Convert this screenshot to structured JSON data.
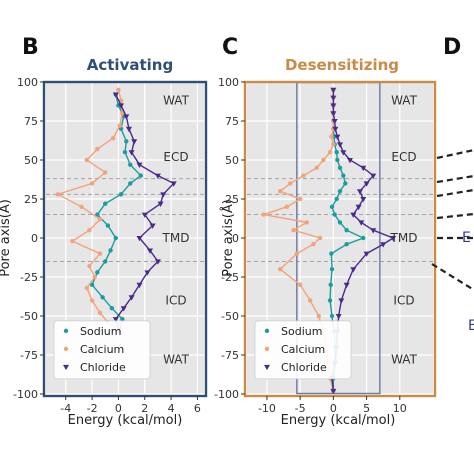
{
  "panel_labels": [
    "B",
    "C",
    "D"
  ],
  "colors": {
    "sodium": "#1a9da0",
    "calcium": "#f4a27a",
    "chloride": "#4b2a8c",
    "activating_frame": "#2f4f75",
    "desensitizing_frame": "#c98b45",
    "plot_bg": "#e6e6e6"
  },
  "regions": [
    "WAT",
    "ECD",
    "TMD",
    "ICD",
    "WAT"
  ],
  "legend": [
    "Sodium",
    "Calcium",
    "Chloride"
  ],
  "right_fragment_labels": [
    "E",
    "E"
  ],
  "chart_data": [
    {
      "type": "line",
      "title": "Activating",
      "xlabel": "Energy (kcal/mol)",
      "ylabel": "",
      "xlim": [
        -5.5,
        6.5
      ],
      "ylim": [
        -100,
        100
      ],
      "xticks": [
        -4,
        -2,
        0,
        2,
        4,
        6
      ],
      "yticks": [
        -100,
        -75,
        -50,
        -25,
        0,
        25,
        50,
        75,
        100
      ],
      "dashed_lines_y": [
        38,
        28,
        15,
        -15
      ],
      "region_label_y": [
        88,
        52,
        0,
        -40,
        -78
      ],
      "legend_placement": "lower-left",
      "grid": true,
      "series": [
        {
          "name": "Sodium",
          "color": "sodium",
          "marker": "circle",
          "y": [
            -60,
            -52,
            -45,
            -38,
            -30,
            -22,
            -15,
            -8,
            0,
            8,
            15,
            22,
            28,
            35,
            40,
            47,
            55,
            62,
            70,
            78,
            85,
            92
          ],
          "x": [
            0.1,
            0.3,
            -0.5,
            -1.2,
            -2.0,
            -1.6,
            -1.0,
            -0.6,
            -0.2,
            -0.8,
            -1.6,
            -1.0,
            0.2,
            0.9,
            1.7,
            0.9,
            0.5,
            0.6,
            0.2,
            0.4,
            0.0,
            -0.2
          ]
        },
        {
          "name": "Calcium",
          "color": "calcium",
          "marker": "circle",
          "y": [
            -60,
            -54,
            -48,
            -40,
            -32,
            -25,
            -18,
            -10,
            -2,
            5,
            12,
            20,
            28,
            35,
            42,
            50,
            57,
            64,
            72,
            80,
            88,
            95
          ],
          "x": [
            0.2,
            -0.8,
            -1.4,
            -2.0,
            -2.4,
            -1.8,
            -2.2,
            -1.4,
            -3.5,
            -2.2,
            -1.4,
            -2.8,
            -4.6,
            -2.0,
            -1.0,
            -2.4,
            -1.6,
            -0.4,
            0.1,
            0.3,
            0.2,
            0.0
          ]
        },
        {
          "name": "Chloride",
          "color": "chloride",
          "marker": "triangle",
          "y": [
            -60,
            -52,
            -45,
            -38,
            -30,
            -22,
            -15,
            -8,
            0,
            8,
            15,
            22,
            28,
            35,
            40,
            47,
            55,
            62,
            70,
            78,
            85,
            92
          ],
          "x": [
            0.1,
            -0.2,
            0.4,
            1.0,
            1.6,
            2.2,
            3.0,
            2.4,
            1.6,
            2.6,
            2.0,
            3.2,
            3.4,
            4.2,
            3.0,
            1.6,
            1.0,
            1.2,
            0.8,
            0.6,
            0.2,
            -0.2
          ]
        }
      ]
    },
    {
      "type": "line",
      "title": "Desensitizing",
      "xlabel": "Energy (kcal/mol)",
      "ylabel": "Pore axis(Å)",
      "xlim": [
        -13,
        15
      ],
      "ylim": [
        -100,
        100
      ],
      "xticks": [
        -10,
        -5,
        0,
        5,
        10
      ],
      "yticks": [
        -100,
        -75,
        -50,
        -25,
        0,
        25,
        50,
        75,
        100
      ],
      "dashed_lines_y": [
        38,
        28,
        15,
        -15
      ],
      "region_label_y": [
        88,
        52,
        0,
        -40,
        -78
      ],
      "highlight_box_x": [
        -5.5,
        7.0
      ],
      "legend_placement": "lower-left",
      "grid": true,
      "series": [
        {
          "name": "Sodium",
          "color": "sodium",
          "marker": "circle",
          "y": [
            -98,
            -90,
            -80,
            -70,
            -60,
            -50,
            -40,
            -30,
            -20,
            -10,
            -4,
            0,
            5,
            10,
            15,
            20,
            25,
            30,
            35,
            40,
            45,
            50,
            55,
            60,
            65,
            70,
            75,
            80,
            85,
            90,
            95
          ],
          "x": [
            0,
            0,
            0.2,
            0.3,
            0.1,
            -0.2,
            -0.5,
            -0.4,
            -0.2,
            -0.3,
            2.0,
            4.5,
            2.0,
            1.0,
            0.2,
            -0.2,
            0.5,
            1.0,
            1.8,
            1.5,
            1.0,
            0.6,
            0.5,
            0.2,
            0.1,
            0,
            0,
            0,
            0,
            0,
            0
          ]
        },
        {
          "name": "Calcium",
          "color": "calcium",
          "marker": "circle",
          "y": [
            -98,
            -90,
            -80,
            -70,
            -60,
            -50,
            -40,
            -30,
            -20,
            -10,
            -4,
            0,
            5,
            10,
            15,
            20,
            25,
            30,
            35,
            40,
            45,
            50,
            55,
            60,
            65,
            70,
            75,
            80,
            85,
            90,
            95
          ],
          "x": [
            0,
            -0.5,
            -0.8,
            -1.0,
            -1.5,
            -2.2,
            -3.5,
            -5.0,
            -8.0,
            -5.5,
            -3.0,
            -2.0,
            -6.0,
            -4.0,
            -10.5,
            -7.0,
            -5.0,
            -8.0,
            -6.5,
            -4.5,
            -2.5,
            -1.5,
            -0.5,
            0,
            -0.3,
            0,
            0,
            0,
            0,
            0,
            0
          ]
        },
        {
          "name": "Chloride",
          "color": "chloride",
          "marker": "triangle",
          "y": [
            -98,
            -90,
            -80,
            -70,
            -60,
            -50,
            -40,
            -30,
            -20,
            -10,
            -4,
            0,
            5,
            10,
            15,
            20,
            25,
            30,
            35,
            40,
            45,
            50,
            55,
            60,
            65,
            70,
            75,
            80,
            85,
            90,
            95
          ],
          "x": [
            0,
            -0.2,
            0.3,
            0.5,
            0.6,
            0.8,
            1.2,
            2.0,
            3.0,
            5.0,
            7.5,
            9.0,
            6.0,
            4.2,
            3.0,
            3.8,
            4.5,
            4.0,
            5.0,
            6.0,
            4.5,
            2.5,
            1.5,
            1.0,
            0.6,
            0.3,
            0.2,
            0,
            0,
            0,
            0
          ]
        }
      ]
    }
  ]
}
